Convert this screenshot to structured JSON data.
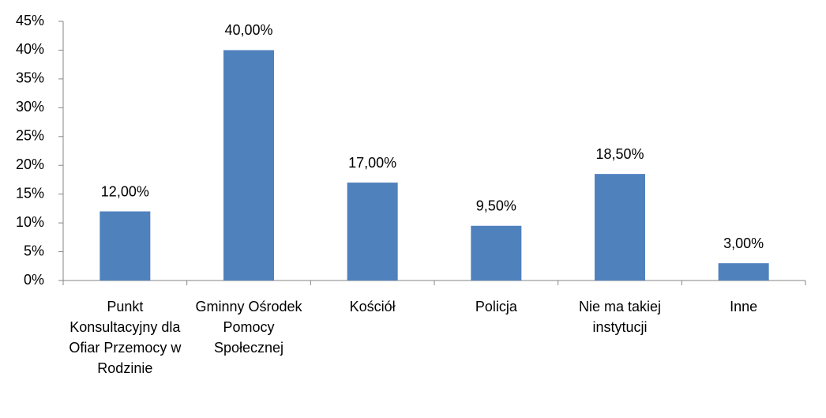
{
  "chart_data": {
    "type": "bar",
    "categories": [
      "Punkt Konsultacyjny dla Ofiar Przemocy w Rodzinie",
      "Gminny Ośrodek Pomocy Społecznej",
      "Kościół",
      "Policja",
      "Nie ma takiej instytucji",
      "Inne"
    ],
    "values": [
      12,
      40,
      17,
      9.5,
      18.5,
      3
    ],
    "value_labels": [
      "12,00%",
      "40,00%",
      "17,00%",
      "9,50%",
      "18,50%",
      "3,00%"
    ],
    "color": "#4f81bd",
    "ylim": [
      0,
      45
    ],
    "yticks": [
      {
        "value": 0,
        "label": "0%"
      },
      {
        "value": 5,
        "label": "5%"
      },
      {
        "value": 10,
        "label": "10%"
      },
      {
        "value": 15,
        "label": "15%"
      },
      {
        "value": 20,
        "label": "20%"
      },
      {
        "value": 25,
        "label": "25%"
      },
      {
        "value": 30,
        "label": "30%"
      },
      {
        "value": 35,
        "label": "35%"
      },
      {
        "value": 40,
        "label": "40%"
      },
      {
        "value": 45,
        "label": "45%"
      }
    ],
    "grid": false
  }
}
